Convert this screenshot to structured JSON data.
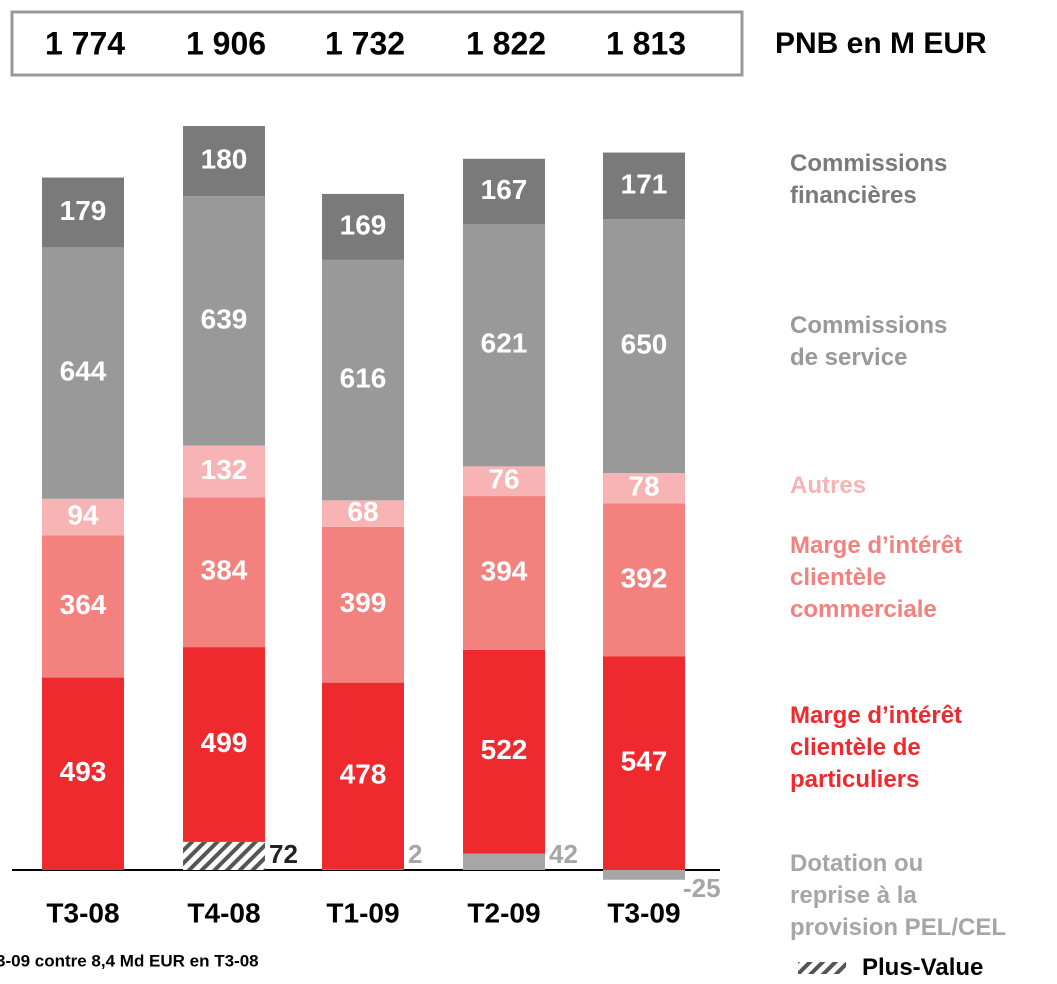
{
  "chart_data": {
    "type": "stacked_bar",
    "title": "PNB en M EUR",
    "categories": [
      "T3-08",
      "T4-08",
      "T1-09",
      "T2-09",
      "T3-09"
    ],
    "totals": [
      1774,
      1906,
      1732,
      1822,
      1813
    ],
    "total_labels": [
      "1 774",
      "1 906",
      "1 732",
      "1 822",
      "1 813"
    ],
    "series": [
      {
        "name": "Dotation ou\nreprise à la\nprovision PEL/CEL",
        "color": "#a6a6a6",
        "label_outside": true,
        "values": [
          null,
          null,
          2,
          42,
          -25
        ]
      },
      {
        "name": "Plus-Value",
        "color": "#555555",
        "pattern": "hatch",
        "label_outside": true,
        "values": [
          null,
          72,
          null,
          null,
          null
        ]
      },
      {
        "name": "Marge d’intérêt\nclientèle de\nparticuliers",
        "color": "#ee2a2e",
        "values": [
          493,
          499,
          478,
          522,
          547
        ]
      },
      {
        "name": "Marge d’intérêt\nclientèle\ncommerciale",
        "color": "#f3827f",
        "values": [
          364,
          384,
          399,
          394,
          392
        ]
      },
      {
        "name": "Autres",
        "color": "#f8b4b4",
        "values": [
          94,
          132,
          68,
          76,
          78
        ]
      },
      {
        "name": "Commissions\nde service",
        "color": "#999999",
        "values": [
          644,
          639,
          616,
          621,
          650
        ]
      },
      {
        "name": "Commissions\nfinancières",
        "color": "#7a7a7a",
        "values": [
          179,
          180,
          169,
          167,
          171
        ]
      }
    ],
    "footnote": "3-09 contre 8,4 Md EUR en T3-08"
  }
}
